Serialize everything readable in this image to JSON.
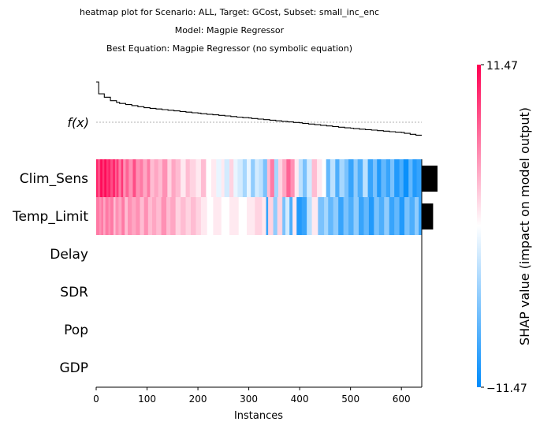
{
  "titles": {
    "line1": "heatmap plot for Scenario: ALL, Target: GCost, Subset: small_inc_enc",
    "line2": "Model: Magpie Regressor",
    "line3": "Best Equation: Magpie Regressor (no symbolic equation)"
  },
  "fx_label": "f(x)",
  "xlabel": "Instances",
  "colorbar": {
    "label": "SHAP value (impact on model output)",
    "max_label": "11.47",
    "min_label": "−11.47",
    "high_color": "#ff0052",
    "low_color": "#008bfb"
  },
  "chart_data": {
    "type": "heatmap",
    "features": [
      "Clim_Sens",
      "Temp_Limit",
      "Delay",
      "SDR",
      "Pop",
      "GDP"
    ],
    "instances": 640,
    "xlim": [
      0,
      640
    ],
    "xticks": [
      0,
      100,
      200,
      300,
      400,
      500,
      600
    ],
    "vmin": -11.47,
    "vmax": 11.47,
    "feature_importance": [
      {
        "name": "Clim_Sens",
        "relative": 1.0
      },
      {
        "name": "Temp_Limit",
        "relative": 0.72
      },
      {
        "name": "Delay",
        "relative": 0
      },
      {
        "name": "SDR",
        "relative": 0
      },
      {
        "name": "Pop",
        "relative": 0
      },
      {
        "name": "GDP",
        "relative": 0
      }
    ],
    "fx_curve": {
      "description_points": [
        [
          0,
          1.0
        ],
        [
          10,
          0.78
        ],
        [
          40,
          0.62
        ],
        [
          100,
          0.52
        ],
        [
          200,
          0.42
        ],
        [
          300,
          0.33
        ],
        [
          400,
          0.24
        ],
        [
          500,
          0.14
        ],
        [
          600,
          0.06
        ],
        [
          640,
          0.0
        ]
      ]
    },
    "segments": {
      "Clim_Sens": [
        [
          0,
          3,
          10
        ],
        [
          3,
          8,
          8
        ],
        [
          8,
          12,
          11
        ],
        [
          12,
          16,
          9
        ],
        [
          16,
          20,
          11
        ],
        [
          20,
          24,
          9
        ],
        [
          24,
          28,
          10
        ],
        [
          28,
          33,
          8
        ],
        [
          33,
          37,
          10
        ],
        [
          37,
          40,
          7
        ],
        [
          40,
          44,
          9
        ],
        [
          44,
          49,
          6
        ],
        [
          49,
          53,
          9
        ],
        [
          53,
          58,
          5
        ],
        [
          58,
          64,
          7
        ],
        [
          64,
          72,
          5
        ],
        [
          72,
          78,
          8
        ],
        [
          78,
          86,
          5
        ],
        [
          86,
          92,
          6
        ],
        [
          92,
          100,
          4
        ],
        [
          100,
          106,
          6
        ],
        [
          106,
          114,
          3
        ],
        [
          114,
          122,
          4
        ],
        [
          122,
          130,
          3
        ],
        [
          130,
          140,
          5
        ],
        [
          140,
          148,
          2
        ],
        [
          148,
          156,
          4
        ],
        [
          156,
          166,
          3
        ],
        [
          166,
          176,
          1
        ],
        [
          176,
          184,
          3
        ],
        [
          184,
          196,
          2
        ],
        [
          196,
          206,
          1
        ],
        [
          206,
          216,
          3
        ],
        [
          216,
          226,
          0
        ],
        [
          226,
          236,
          1
        ],
        [
          236,
          246,
          -1
        ],
        [
          246,
          252,
          1
        ],
        [
          252,
          262,
          -2
        ],
        [
          262,
          270,
          2
        ],
        [
          270,
          278,
          -1
        ],
        [
          278,
          288,
          -2
        ],
        [
          288,
          296,
          -4
        ],
        [
          296,
          304,
          -1
        ],
        [
          304,
          312,
          -5
        ],
        [
          312,
          320,
          -2
        ],
        [
          320,
          328,
          -3
        ],
        [
          328,
          336,
          -6
        ],
        [
          336,
          342,
          3
        ],
        [
          342,
          350,
          6
        ],
        [
          350,
          358,
          -4
        ],
        [
          358,
          366,
          2
        ],
        [
          366,
          374,
          4
        ],
        [
          374,
          382,
          7
        ],
        [
          382,
          390,
          5
        ],
        [
          390,
          398,
          1
        ],
        [
          398,
          406,
          -3
        ],
        [
          406,
          414,
          -6
        ],
        [
          414,
          424,
          -2
        ],
        [
          424,
          434,
          3
        ],
        [
          434,
          444,
          1
        ],
        [
          444,
          452,
          0
        ],
        [
          452,
          460,
          -7
        ],
        [
          460,
          470,
          -3
        ],
        [
          470,
          478,
          -8
        ],
        [
          478,
          488,
          -4
        ],
        [
          488,
          496,
          -6
        ],
        [
          496,
          506,
          -9
        ],
        [
          506,
          514,
          -5
        ],
        [
          514,
          524,
          -8
        ],
        [
          524,
          534,
          -3
        ],
        [
          534,
          544,
          -9
        ],
        [
          544,
          552,
          -6
        ],
        [
          552,
          560,
          -10
        ],
        [
          560,
          570,
          -7
        ],
        [
          570,
          578,
          -9
        ],
        [
          578,
          586,
          -6
        ],
        [
          586,
          596,
          -10
        ],
        [
          596,
          604,
          -8
        ],
        [
          604,
          614,
          -11
        ],
        [
          614,
          622,
          -7
        ],
        [
          622,
          630,
          -10
        ],
        [
          630,
          640,
          -9
        ]
      ],
      "Temp_Limit": [
        [
          0,
          6,
          6
        ],
        [
          6,
          10,
          5
        ],
        [
          10,
          14,
          6
        ],
        [
          14,
          18,
          4
        ],
        [
          18,
          24,
          6
        ],
        [
          24,
          28,
          5
        ],
        [
          28,
          34,
          6
        ],
        [
          34,
          38,
          3
        ],
        [
          38,
          44,
          5
        ],
        [
          44,
          50,
          4
        ],
        [
          50,
          56,
          6
        ],
        [
          56,
          62,
          3
        ],
        [
          62,
          70,
          5
        ],
        [
          70,
          78,
          4
        ],
        [
          78,
          86,
          5
        ],
        [
          86,
          94,
          3
        ],
        [
          94,
          102,
          5
        ],
        [
          102,
          110,
          3
        ],
        [
          110,
          118,
          4
        ],
        [
          118,
          128,
          3
        ],
        [
          128,
          138,
          5
        ],
        [
          138,
          146,
          3
        ],
        [
          146,
          156,
          4
        ],
        [
          156,
          166,
          2
        ],
        [
          166,
          176,
          3
        ],
        [
          176,
          186,
          2
        ],
        [
          186,
          196,
          3
        ],
        [
          196,
          206,
          2
        ],
        [
          206,
          218,
          1
        ],
        [
          218,
          230,
          0
        ],
        [
          230,
          246,
          1
        ],
        [
          246,
          262,
          0
        ],
        [
          262,
          280,
          1
        ],
        [
          280,
          296,
          0
        ],
        [
          296,
          312,
          1
        ],
        [
          312,
          326,
          2
        ],
        [
          326,
          334,
          1
        ],
        [
          334,
          338,
          -9
        ],
        [
          338,
          348,
          2
        ],
        [
          348,
          356,
          -5
        ],
        [
          356,
          366,
          2
        ],
        [
          366,
          372,
          -6
        ],
        [
          372,
          380,
          -2
        ],
        [
          380,
          386,
          -8
        ],
        [
          386,
          394,
          1
        ],
        [
          394,
          404,
          -10
        ],
        [
          404,
          414,
          -9
        ],
        [
          414,
          424,
          -3
        ],
        [
          424,
          436,
          1
        ],
        [
          436,
          448,
          -6
        ],
        [
          448,
          456,
          -4
        ],
        [
          456,
          466,
          -7
        ],
        [
          466,
          476,
          -5
        ],
        [
          476,
          486,
          -9
        ],
        [
          486,
          496,
          -6
        ],
        [
          496,
          506,
          -8
        ],
        [
          506,
          516,
          -5
        ],
        [
          516,
          526,
          -9
        ],
        [
          526,
          536,
          -7
        ],
        [
          536,
          546,
          -10
        ],
        [
          546,
          556,
          -6
        ],
        [
          556,
          566,
          -8
        ],
        [
          566,
          576,
          -5
        ],
        [
          576,
          586,
          -9
        ],
        [
          586,
          596,
          -7
        ],
        [
          596,
          606,
          -10
        ],
        [
          606,
          616,
          -6
        ],
        [
          616,
          626,
          -8
        ],
        [
          626,
          634,
          -5
        ],
        [
          634,
          640,
          -9
        ]
      ],
      "Delay": [],
      "SDR": [],
      "Pop": [],
      "GDP": []
    }
  }
}
